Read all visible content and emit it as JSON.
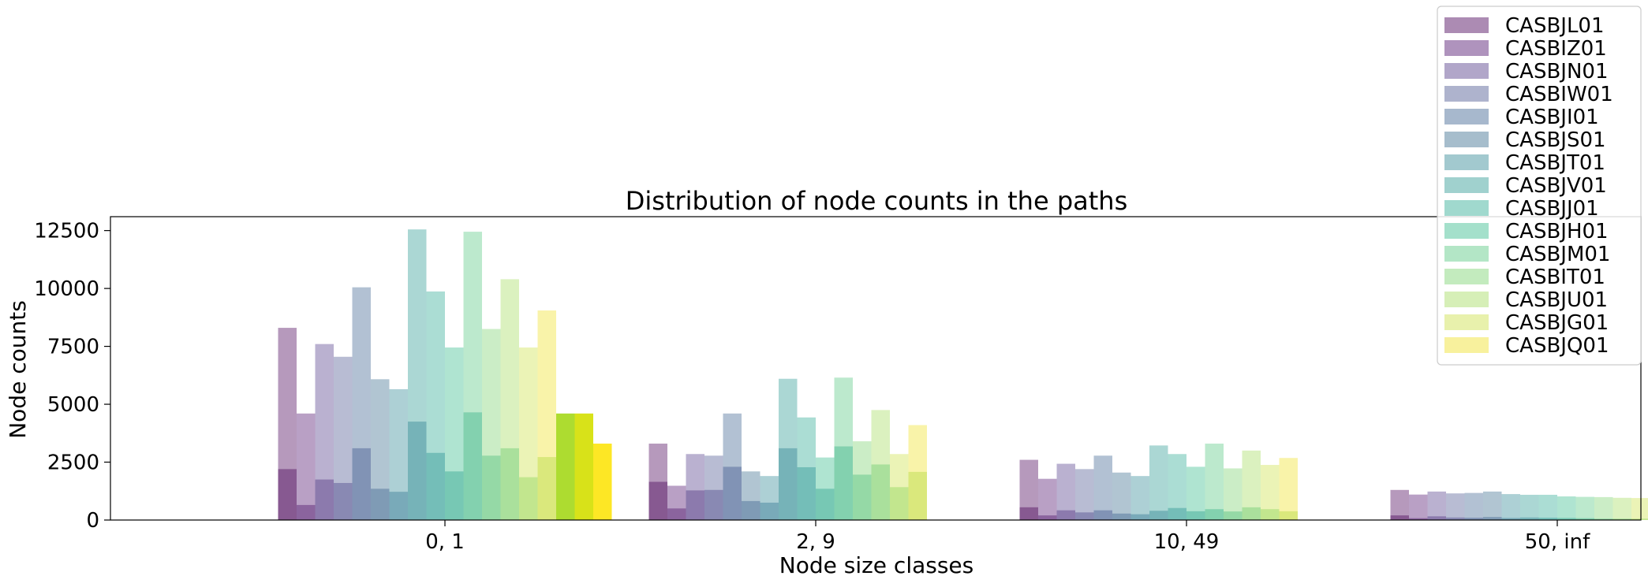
{
  "chart_data": {
    "type": "bar",
    "title": "Distribution of node counts in the paths",
    "xlabel": "Node size classes",
    "ylabel": "Node counts",
    "categories": [
      "0, 1",
      "2, 9",
      "10, 49",
      "50, inf"
    ],
    "ylim": [
      0,
      13100
    ],
    "yticks": [
      0,
      2500,
      5000,
      7500,
      10000,
      12500
    ],
    "legend_position": "top-right",
    "grid": false,
    "series": [
      {
        "name": "CASBJL01",
        "color": "#440154",
        "overlay_values": [
          8300,
          3300,
          2600,
          1300
        ],
        "base_values": [
          2200,
          1650,
          550,
          200
        ]
      },
      {
        "name": "CASBIZ01",
        "color": "#481567",
        "overlay_values": [
          4600,
          1480,
          1780,
          1100
        ],
        "base_values": [
          650,
          500,
          200,
          80
        ]
      },
      {
        "name": "CASBJN01",
        "color": "#482677",
        "overlay_values": [
          7600,
          2850,
          2430,
          1230
        ],
        "base_values": [
          1750,
          1280,
          420,
          160
        ]
      },
      {
        "name": "CASBIW01",
        "color": "#453781",
        "overlay_values": [
          7050,
          2780,
          2200,
          1150
        ],
        "base_values": [
          1600,
          1300,
          330,
          110
        ]
      },
      {
        "name": "CASBJI01",
        "color": "#3f4788",
        "overlay_values": [
          10050,
          4600,
          2780,
          1170
        ],
        "base_values": [
          3100,
          2300,
          420,
          100
        ]
      },
      {
        "name": "CASBJS01",
        "color": "#39558c",
        "overlay_values": [
          6080,
          2100,
          2050,
          1230
        ],
        "base_values": [
          1350,
          820,
          280,
          130
        ]
      },
      {
        "name": "CASBJT01",
        "color": "#32648e",
        "overlay_values": [
          5650,
          1900,
          1900,
          1120
        ],
        "base_values": [
          1220,
          750,
          250,
          90
        ]
      },
      {
        "name": "CASBJV01",
        "color": "#2d718e",
        "overlay_values": [
          12550,
          6100,
          3220,
          1090
        ],
        "base_values": [
          4250,
          3100,
          400,
          110
        ]
      },
      {
        "name": "CASBJJ01",
        "color": "#287d8e",
        "overlay_values": [
          9870,
          4430,
          2850,
          1090
        ],
        "base_values": [
          2900,
          2280,
          520,
          100
        ]
      },
      {
        "name": "CASBJH01",
        "color": "#238a8d",
        "overlay_values": [
          7450,
          2700,
          2300,
          1020
        ],
        "base_values": [
          2100,
          1350,
          380,
          90
        ]
      },
      {
        "name": "CASBJM01",
        "color": "#1f968b",
        "overlay_values": [
          12450,
          6150,
          3300,
          1000
        ],
        "base_values": [
          4650,
          3180,
          470,
          80
        ]
      },
      {
        "name": "CASBIT01",
        "color": "#20a386",
        "overlay_values": [
          8250,
          3400,
          2230,
          990
        ],
        "base_values": [
          2780,
          1960,
          370,
          60
        ]
      },
      {
        "name": "CASBJU01",
        "color": "#29af7f",
        "overlay_values": [
          10400,
          4750,
          3000,
          960
        ],
        "base_values": [
          3100,
          2400,
          550,
          60
        ]
      },
      {
        "name": "CASBJG01",
        "color": "#3dbc74",
        "overlay_values": [
          7450,
          2850,
          2380,
          950
        ],
        "base_values": [
          1850,
          1420,
          470,
          60
        ]
      },
      {
        "name": "CASBJQ01",
        "color": "#56c667",
        "overlay_values": [
          9050,
          4100,
          2680,
          900
        ],
        "base_values": [
          2720,
          2080,
          380,
          40
        ]
      }
    ],
    "base_colors": [
      "#440154",
      "#471365",
      "#482475",
      "#453781",
      "#3e4989",
      "#38598c",
      "#31688e",
      "#2c728e",
      "#26828e",
      "#21918c",
      "#1fa088",
      "#28ae80",
      "#3fbc73",
      "#5ec962",
      "#84d44b",
      "#addc30",
      "#d8e219",
      "#fde725"
    ],
    "overlay_colors": [
      "#9e77a6",
      "#a180b1",
      "#a397c0",
      "#a0a6c4",
      "#98acc4",
      "#97b1c3",
      "#92c0c7",
      "#8fc9c6",
      "#8fd2c6",
      "#94dbc2",
      "#a6e2bc",
      "#b9e7b3",
      "#cfecaa",
      "#e4ef9d",
      "#f7ef8c"
    ]
  }
}
